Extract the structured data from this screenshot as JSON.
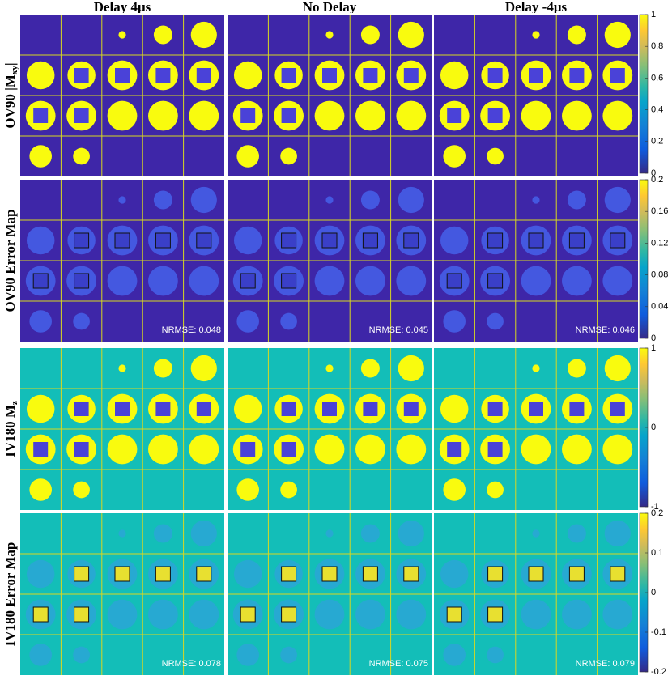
{
  "columns": [
    "Delay 4μs",
    "No Delay",
    "Delay -4μs"
  ],
  "rows": [
    {
      "label": "OV90 |M",
      "label_sub": "xy",
      "label_end": "|",
      "annotations": null,
      "ticks": [
        0,
        0.2,
        0.4,
        0.6,
        0.8,
        1
      ],
      "range": [
        0,
        1
      ]
    },
    {
      "label": "OV90 Error Map",
      "label_sub": null,
      "label_end": null,
      "annotations": [
        "NRMSE: 0.048",
        "NRMSE: 0.045",
        "NRMSE: 0.046"
      ],
      "ticks": [
        0,
        0.04,
        0.08,
        0.12,
        0.16,
        0.2
      ],
      "range": [
        0,
        0.2
      ]
    },
    {
      "label": "IV180 M",
      "label_sub": "z",
      "label_end": null,
      "annotations": null,
      "ticks": [
        -1,
        0,
        1
      ],
      "range": [
        -1,
        1
      ]
    },
    {
      "label": "IV180 Error Map",
      "label_sub": null,
      "label_end": null,
      "annotations": [
        "NRMSE: 0.078",
        "NRMSE: 0.075",
        "NRMSE: 0.079"
      ],
      "ticks": [
        -0.2,
        -0.1,
        0,
        0.1,
        0.2
      ],
      "range": [
        -0.2,
        0.2
      ]
    }
  ]
}
